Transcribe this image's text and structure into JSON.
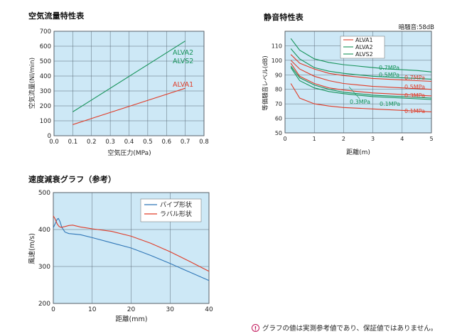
{
  "titles": {
    "flow": "空気流量特性表",
    "noise": "静音特性表",
    "speed": "速度減衰グラフ（参考）"
  },
  "footnote": "グラフの値は実測参考値であり、保証値ではありません。",
  "colors": {
    "plot_bg": "#cde8f6",
    "grid": "#5a6b78",
    "red": "#e03c28",
    "green": "#16935a",
    "blue": "#2f76b7"
  },
  "chart_data": [
    {
      "id": "flow",
      "type": "line",
      "title": "空気流量特性表",
      "xlabel": "空気圧力(MPa)",
      "ylabel": "空気流量(Nl/min)",
      "xlim": [
        0,
        0.8
      ],
      "ylim": [
        0,
        700
      ],
      "xticks": [
        "0.0",
        "0.1",
        "0.2",
        "0.3",
        "0.4",
        "0.5",
        "0.6",
        "0.7",
        "0.8"
      ],
      "yticks": [
        "0",
        "100",
        "200",
        "300",
        "400",
        "500",
        "600",
        "700"
      ],
      "grid": true,
      "series": [
        {
          "name": "ALVA2\nALVS2",
          "labels": [
            "ALVA2",
            "ALVS2"
          ],
          "color": "green",
          "x": [
            0.1,
            0.7
          ],
          "y": [
            160,
            635
          ]
        },
        {
          "name": "ALVA1",
          "labels": [
            "ALVA1"
          ],
          "color": "red",
          "x": [
            0.1,
            0.7
          ],
          "y": [
            75,
            318
          ]
        }
      ]
    },
    {
      "id": "noise",
      "type": "line",
      "title": "静音特性表",
      "annotation": "暗騒音:58dB",
      "xlabel": "距離(m)",
      "ylabel": "等価騒音レベル(dB)",
      "xlim": [
        0,
        5
      ],
      "ylim": [
        50,
        120
      ],
      "xticks": [
        "0",
        "1",
        "2",
        "3",
        "4",
        "5"
      ],
      "yticks": [
        "50",
        "60",
        "70",
        "80",
        "90",
        "100",
        "110"
      ],
      "grid": true,
      "legend": {
        "position": "top-right",
        "entries": [
          {
            "label": "ALVA1",
            "color": "red"
          },
          {
            "label": "ALVA2",
            "color": "green"
          },
          {
            "label": "ALVS2",
            "color": "green"
          }
        ]
      },
      "series": [
        {
          "label": "0.7MPa",
          "color": "green",
          "x": [
            0.2,
            0.5,
            1,
            1.5,
            2,
            2.5,
            3,
            3.5,
            4,
            4.5,
            5
          ],
          "y": [
            115,
            107,
            101,
            98.5,
            97,
            96,
            95,
            94,
            93.5,
            93,
            92
          ]
        },
        {
          "label": "0.5MPa",
          "color": "green",
          "x": [
            0.2,
            0.5,
            1,
            1.5,
            2,
            2.5,
            3,
            3.5,
            4,
            4.5,
            5
          ],
          "y": [
            108,
            101,
            95,
            92.5,
            91,
            90,
            89,
            88.5,
            88,
            87.5,
            87
          ]
        },
        {
          "label": "0.7MPa",
          "color": "red",
          "x": [
            0.2,
            0.5,
            1,
            1.5,
            2,
            2.5,
            3,
            3.5,
            4,
            4.5,
            5
          ],
          "y": [
            104,
            98,
            94,
            91,
            89.5,
            88.5,
            87.5,
            87,
            86.5,
            86,
            85.5
          ]
        },
        {
          "label": "0.5MPa",
          "color": "red",
          "x": [
            0.2,
            0.5,
            1,
            1.5,
            2,
            2.5,
            3,
            3.5,
            4,
            4.5,
            5
          ],
          "y": [
            100,
            94,
            89,
            86,
            84,
            83,
            82,
            81.5,
            81,
            80.5,
            80
          ]
        },
        {
          "label": "0.3MPa",
          "color": "red",
          "x": [
            0.2,
            0.5,
            1,
            1.5,
            2,
            2.5,
            3,
            3.5,
            4,
            4.5,
            5
          ],
          "y": [
            98,
            89,
            84,
            81,
            79.5,
            78.5,
            77.5,
            77,
            76.5,
            76,
            75.5
          ]
        },
        {
          "label": "0.3MPa",
          "color": "green",
          "x": [
            0.2,
            0.5,
            1,
            1.5,
            2,
            2.5,
            3,
            3.5,
            4,
            4.5,
            5
          ],
          "y": [
            96,
            88,
            83,
            80,
            78,
            77,
            76,
            75.5,
            75,
            74.5,
            74
          ]
        },
        {
          "label": "0.1MPa",
          "color": "green",
          "x": [
            0.2,
            0.5,
            1,
            1.5,
            2,
            2.5,
            3,
            3.5,
            4,
            4.5,
            5
          ],
          "y": [
            95,
            86,
            81,
            78.5,
            77,
            76,
            75,
            74.5,
            74,
            73.5,
            73
          ]
        },
        {
          "label": "0.1MPa",
          "color": "red",
          "x": [
            0.2,
            0.5,
            1,
            1.5,
            2,
            2.5,
            3,
            3.5,
            4,
            4.5,
            5
          ],
          "y": [
            84,
            74,
            70,
            68.5,
            67.5,
            67,
            66.5,
            66,
            65.5,
            65,
            64.5
          ]
        }
      ]
    },
    {
      "id": "speed",
      "type": "line",
      "title": "速度減衰グラフ（参考）",
      "xlabel": "距離(mm)",
      "ylabel": "風速(m/s)",
      "xlim": [
        0,
        40
      ],
      "ylim": [
        200,
        500
      ],
      "xticks": [
        "0",
        "10",
        "20",
        "30",
        "40"
      ],
      "yticks": [
        "200",
        "300",
        "400",
        "500"
      ],
      "grid": true,
      "legend": {
        "position": "top-right"
      },
      "series": [
        {
          "name": "パイプ形状",
          "color": "blue",
          "x": [
            0,
            0.5,
            1,
            1.3,
            1.7,
            2.2,
            3,
            4,
            5,
            7,
            10,
            15,
            20,
            25,
            30,
            35,
            40
          ],
          "y": [
            405,
            416,
            428,
            430,
            422,
            406,
            393,
            389,
            388,
            386,
            378,
            364,
            350,
            330,
            308,
            285,
            262
          ]
        },
        {
          "name": "ラバル形状",
          "color": "red",
          "x": [
            0,
            0.5,
            1,
            1.5,
            2,
            3,
            4,
            5,
            7,
            10,
            15,
            20,
            25,
            30,
            35,
            40
          ],
          "y": [
            437,
            428,
            415,
            408,
            406,
            408,
            411,
            412,
            407,
            402,
            395,
            382,
            363,
            340,
            314,
            287
          ]
        }
      ]
    }
  ]
}
